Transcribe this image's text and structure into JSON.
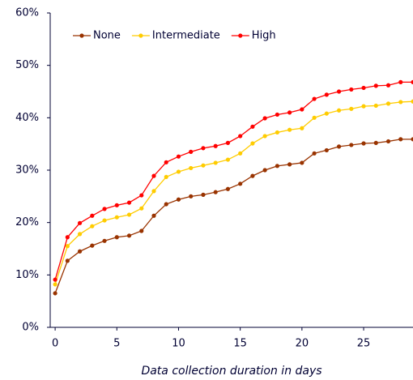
{
  "chart_data": {
    "type": "line",
    "x_label": "Data collection duration in days",
    "x": [
      0,
      1,
      2,
      3,
      4,
      5,
      6,
      7,
      8,
      9,
      10,
      11,
      12,
      13,
      14,
      15,
      16,
      17,
      18,
      19,
      20,
      21,
      22,
      23,
      24,
      25,
      26,
      27,
      28,
      29
    ],
    "series": [
      {
        "name": "None",
        "color": "#993300",
        "values": [
          6.5,
          12.7,
          14.5,
          15.6,
          16.5,
          17.2,
          17.5,
          18.4,
          21.3,
          23.5,
          24.4,
          25.0,
          25.3,
          25.8,
          26.4,
          27.4,
          28.9,
          30.0,
          30.8,
          31.1,
          31.4,
          33.2,
          33.8,
          34.5,
          34.8,
          35.1,
          35.2,
          35.5,
          35.9,
          35.9
        ]
      },
      {
        "name": "Intermediate",
        "color": "#ffcc00",
        "values": [
          8.2,
          15.5,
          17.8,
          19.3,
          20.4,
          21.0,
          21.5,
          22.7,
          26.0,
          28.7,
          29.7,
          30.4,
          30.9,
          31.4,
          32.0,
          33.2,
          35.1,
          36.5,
          37.2,
          37.7,
          38.0,
          40.0,
          40.8,
          41.4,
          41.7,
          42.2,
          42.3,
          42.7,
          43.0,
          43.1
        ]
      },
      {
        "name": "High",
        "color": "#ff0000",
        "values": [
          9.1,
          17.2,
          19.9,
          21.3,
          22.6,
          23.3,
          23.8,
          25.2,
          28.9,
          31.5,
          32.6,
          33.5,
          34.2,
          34.6,
          35.2,
          36.5,
          38.3,
          39.9,
          40.6,
          41.0,
          41.6,
          43.6,
          44.4,
          45.0,
          45.4,
          45.7,
          46.1,
          46.2,
          46.8,
          46.8
        ]
      }
    ],
    "xlim": [
      -0.4,
      29
    ],
    "xticks": [
      0,
      5,
      10,
      15,
      20,
      25
    ],
    "ylim": [
      0,
      60
    ],
    "yticks": [
      {
        "value": 0,
        "label": "0%"
      },
      {
        "value": 10,
        "label": "10%"
      },
      {
        "value": 20,
        "label": "20%"
      },
      {
        "value": 30,
        "label": "30%"
      },
      {
        "value": 40,
        "label": "40%"
      },
      {
        "value": 50,
        "label": "50%"
      },
      {
        "value": 60,
        "label": "60%"
      }
    ],
    "legend": "top-left"
  }
}
